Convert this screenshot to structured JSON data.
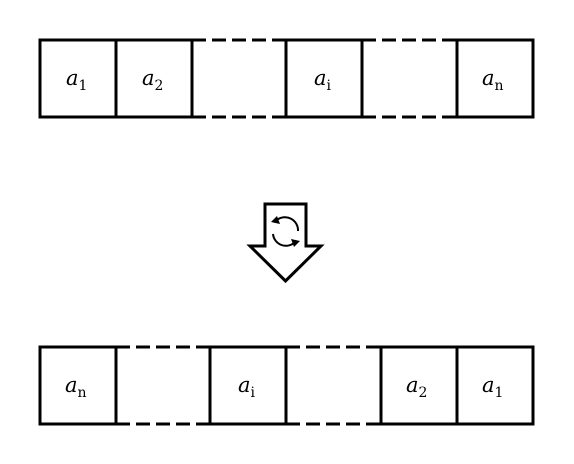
{
  "top_array": {
    "cells": [
      {
        "var": "a",
        "sub": "1"
      },
      {
        "var": "a",
        "sub": "2"
      },
      {
        "var": "",
        "sub": "",
        "gap": true
      },
      {
        "var": "a",
        "sub": "i"
      },
      {
        "var": "",
        "sub": "",
        "gap": true
      },
      {
        "var": "a",
        "sub": "n"
      }
    ]
  },
  "bottom_array": {
    "cells": [
      {
        "var": "a",
        "sub": "n"
      },
      {
        "var": "",
        "sub": "",
        "gap": true
      },
      {
        "var": "a",
        "sub": "i"
      },
      {
        "var": "",
        "sub": "",
        "gap": true
      },
      {
        "var": "a",
        "sub": "2"
      },
      {
        "var": "a",
        "sub": "1"
      }
    ]
  },
  "arrow": {
    "icon": "reverse-cycle-icon"
  },
  "colors": {
    "stroke": "#000000",
    "background": "#ffffff"
  }
}
